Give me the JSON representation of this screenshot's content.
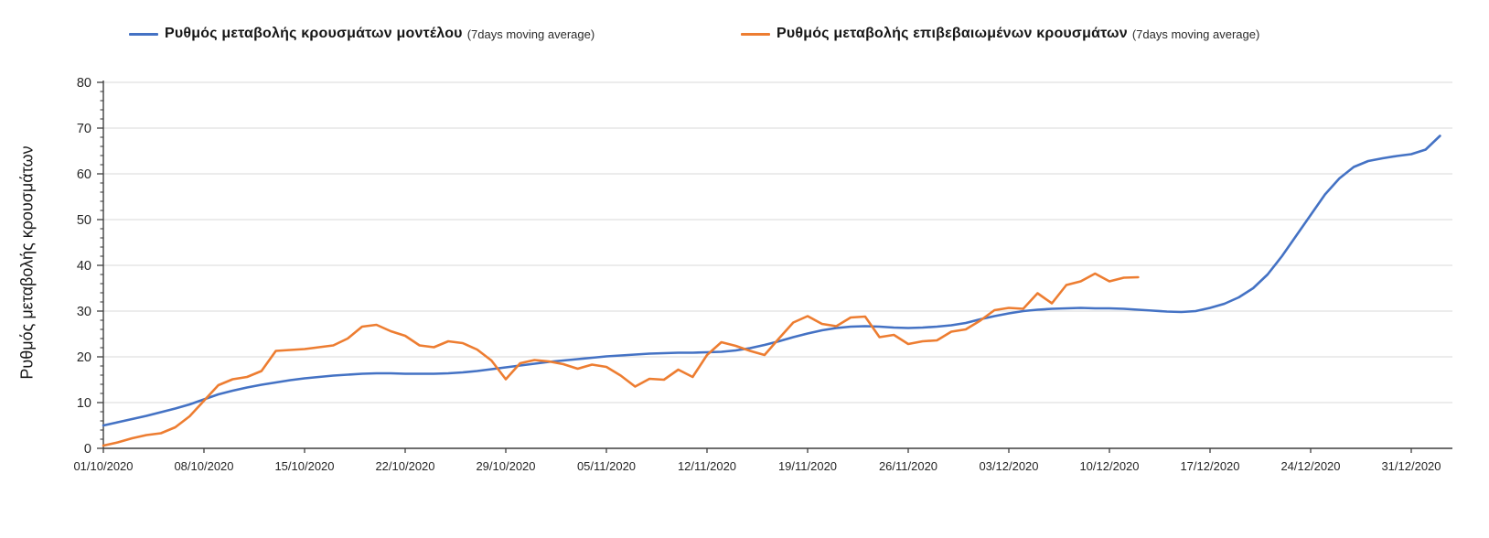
{
  "legend": [
    {
      "label": "Ρυθμός μεταβολής κρουσμάτων μοντέλου",
      "suffix": "(7days moving average)",
      "color": "#4472c4"
    },
    {
      "label": "Ρυθμός μεταβολής επιβεβαιωμένων κρουσμάτων",
      "suffix": "(7days moving average)",
      "color": "#ed7d31"
    }
  ],
  "chart_data": {
    "type": "line",
    "title": "",
    "xlabel": "",
    "ylabel": "Ρυθμός μεταβολής κρουσμάτων",
    "ylim": [
      0,
      80
    ],
    "yticks": [
      0,
      10,
      20,
      30,
      40,
      50,
      60,
      70,
      80
    ],
    "y_minor_tick_step": 2,
    "grid": "horizontal-major",
    "legend_position": "top",
    "x_unit": "daily from 01/10/2020",
    "xtick_interval_days": 7,
    "xtick_labels": [
      "01/10/2020",
      "08/10/2020",
      "15/10/2020",
      "22/10/2020",
      "29/10/2020",
      "05/11/2020",
      "12/11/2020",
      "19/11/2020",
      "26/11/2020",
      "03/12/2020",
      "10/12/2020",
      "17/12/2020",
      "24/12/2020",
      "31/12/2020"
    ],
    "axis_color": "#3f3f3f",
    "grid_color": "#d9d9d9",
    "tick_label_color": "#262626",
    "series": [
      {
        "id": "model",
        "name": "Ρυθμός μεταβολής κρουσμάτων μοντέλου (7days moving average)",
        "color": "#4472c4",
        "start_date": "01/10/2020",
        "values": [
          5.0,
          5.7,
          6.4,
          7.1,
          7.9,
          8.7,
          9.6,
          10.7,
          11.8,
          12.6,
          13.3,
          13.9,
          14.4,
          14.9,
          15.3,
          15.6,
          15.9,
          16.1,
          16.3,
          16.4,
          16.4,
          16.3,
          16.3,
          16.3,
          16.4,
          16.6,
          16.9,
          17.3,
          17.7,
          18.1,
          18.5,
          18.9,
          19.2,
          19.5,
          19.8,
          20.1,
          20.3,
          20.5,
          20.7,
          20.8,
          20.9,
          20.9,
          21.0,
          21.1,
          21.4,
          21.9,
          22.6,
          23.4,
          24.3,
          25.1,
          25.8,
          26.3,
          26.6,
          26.7,
          26.6,
          26.4,
          26.3,
          26.4,
          26.6,
          26.9,
          27.4,
          28.2,
          28.9,
          29.5,
          30.0,
          30.3,
          30.5,
          30.6,
          30.7,
          30.6,
          30.6,
          30.5,
          30.3,
          30.1,
          29.9,
          29.8,
          30.0,
          30.7,
          31.6,
          33.0,
          35.0,
          38.0,
          42.0,
          46.5,
          51.0,
          55.5,
          59.0,
          61.5,
          62.8,
          63.4,
          63.9,
          64.3,
          65.3,
          68.3
        ]
      },
      {
        "id": "confirmed",
        "name": "Ρυθμός μεταβολής επιβεβαιωμένων κρουσμάτων (7days moving average)",
        "color": "#ed7d31",
        "start_date": "01/10/2020",
        "values": [
          0.6,
          1.3,
          2.2,
          2.9,
          3.3,
          4.6,
          7.0,
          10.4,
          13.8,
          15.1,
          15.6,
          16.9,
          21.3,
          21.5,
          21.7,
          22.1,
          22.5,
          24.0,
          26.6,
          27.0,
          25.6,
          24.6,
          22.5,
          22.1,
          23.4,
          23.0,
          21.6,
          19.2,
          15.1,
          18.6,
          19.3,
          19.0,
          18.4,
          17.4,
          18.3,
          17.8,
          15.9,
          13.5,
          15.2,
          15.0,
          17.2,
          15.6,
          20.4,
          23.2,
          22.4,
          21.3,
          20.4,
          24.0,
          27.5,
          28.9,
          27.2,
          26.7,
          28.6,
          28.8,
          24.3,
          24.8,
          22.8,
          23.4,
          23.6,
          25.5,
          26.0,
          27.9,
          30.2,
          30.7,
          30.5,
          33.9,
          31.7,
          35.7,
          36.5,
          38.2,
          36.5,
          37.3,
          37.4
        ]
      }
    ]
  }
}
